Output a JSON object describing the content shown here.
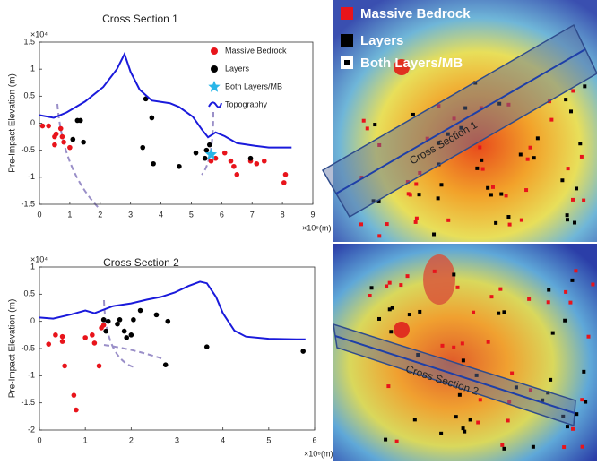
{
  "chart_data": [
    {
      "type": "scatter",
      "title": "Cross Section 1",
      "y_label": "Pre-Impact Elevation (m)",
      "y_multiplier": "×10⁴",
      "x_multiplier": "×10⁶(m)",
      "xlim": [
        0,
        9
      ],
      "xticks": [
        0,
        1,
        2,
        3,
        4,
        5,
        6,
        7,
        8,
        9
      ],
      "ylim": [
        -1.5,
        1.5
      ],
      "yticks": [
        -1.5,
        -1,
        -0.5,
        0,
        0.5,
        1,
        1.5
      ],
      "legend": "upper right",
      "series": [
        {
          "name": "Massive Bedrock",
          "color": "#e8141b",
          "marker": "circle",
          "x": [
            0.1,
            0.3,
            0.5,
            0.55,
            0.5,
            0.75,
            0.8,
            1.0,
            0.7,
            5.65,
            5.8,
            6.1,
            6.3,
            6.4,
            6.5,
            6.95,
            7.15,
            7.4,
            8.1,
            8.05
          ],
          "values": [
            -0.05,
            -0.05,
            -0.25,
            -0.2,
            -0.4,
            -0.25,
            -0.35,
            -0.45,
            -0.1,
            -0.7,
            -0.65,
            -0.55,
            -0.7,
            -0.8,
            -0.95,
            -0.7,
            -0.75,
            -0.7,
            -0.95,
            -1.1
          ]
        },
        {
          "name": "Layers",
          "color": "#000000",
          "marker": "circle",
          "x": [
            1.25,
            1.35,
            1.45,
            1.1,
            3.5,
            3.7,
            3.4,
            3.75,
            4.6,
            5.15,
            5.5,
            5.6,
            5.45,
            6.95
          ],
          "values": [
            0.05,
            0.05,
            -0.35,
            -0.3,
            0.45,
            0.1,
            -0.45,
            -0.75,
            -0.8,
            -0.55,
            -0.5,
            -0.4,
            -0.65,
            -0.65
          ]
        },
        {
          "name": "Both Layers/MB",
          "color": "#29b6e8",
          "marker": "star",
          "x": [
            5.65
          ],
          "values": [
            -0.58
          ]
        },
        {
          "name": "Topography",
          "color": "#1a1adb",
          "marker": "line",
          "x": [
            0,
            0.47,
            0.9,
            1.5,
            2.1,
            2.55,
            2.8,
            3.0,
            3.3,
            3.7,
            4.3,
            4.6,
            5.05,
            5.35,
            5.55,
            5.8,
            6.1,
            6.5,
            7.1,
            7.55,
            8.3
          ],
          "values": [
            0.15,
            0.1,
            0.2,
            0.4,
            0.67,
            1.0,
            1.28,
            0.95,
            0.62,
            0.42,
            0.37,
            0.3,
            0.12,
            -0.12,
            -0.26,
            -0.17,
            -0.24,
            -0.37,
            -0.42,
            -0.45,
            -0.45
          ]
        }
      ]
    },
    {
      "type": "scatter",
      "title": "Cross Section 2",
      "y_label": "Pre-Impact Elevation (m)",
      "y_multiplier": "×10⁴",
      "x_multiplier": "×10⁶(m)",
      "xlim": [
        0,
        6
      ],
      "xticks": [
        0,
        1,
        2,
        3,
        4,
        5,
        6
      ],
      "ylim": [
        -2,
        1
      ],
      "yticks": [
        -2,
        -1.5,
        -1,
        -0.5,
        0,
        0.5,
        1
      ],
      "series": [
        {
          "name": "Massive Bedrock",
          "color": "#e8141b",
          "marker": "circle",
          "x": [
            0.2,
            0.35,
            0.5,
            0.5,
            0.55,
            0.75,
            0.8,
            1.0,
            1.15,
            1.2,
            1.3,
            1.35,
            1.4
          ],
          "values": [
            -0.42,
            -0.25,
            -0.37,
            -0.28,
            -0.82,
            -1.36,
            -1.63,
            -0.3,
            -0.25,
            -0.4,
            -0.82,
            -0.12,
            -0.07
          ]
        },
        {
          "name": "Layers",
          "color": "#000000",
          "marker": "circle",
          "x": [
            1.4,
            1.45,
            1.5,
            1.7,
            1.75,
            1.85,
            1.9,
            2.0,
            2.05,
            2.2,
            2.55,
            2.8,
            2.75,
            3.65,
            5.75
          ],
          "values": [
            0.03,
            -0.18,
            0,
            -0.05,
            0.03,
            -0.18,
            -0.3,
            -0.25,
            0.03,
            0.2,
            0.12,
            0,
            -0.8,
            -0.47,
            -0.55
          ]
        },
        {
          "name": "Topography",
          "color": "#1a1adb",
          "marker": "line",
          "x": [
            0,
            0.3,
            0.7,
            1.0,
            1.2,
            1.6,
            2.0,
            2.35,
            2.65,
            2.95,
            3.25,
            3.5,
            3.65,
            3.85,
            4.0,
            4.25,
            4.5,
            5.0,
            5.6,
            5.8
          ],
          "values": [
            0.07,
            0.05,
            0.13,
            0.2,
            0.15,
            0.28,
            0.33,
            0.4,
            0.45,
            0.53,
            0.65,
            0.73,
            0.7,
            0.45,
            0.15,
            -0.17,
            -0.28,
            -0.32,
            -0.33,
            -0.33
          ]
        }
      ]
    }
  ],
  "map_legend": [
    "Massive Bedrock",
    "Layers",
    "Both Layers/MB"
  ],
  "map_labels": [
    "Cross Section 1",
    "Cross Section 2"
  ]
}
